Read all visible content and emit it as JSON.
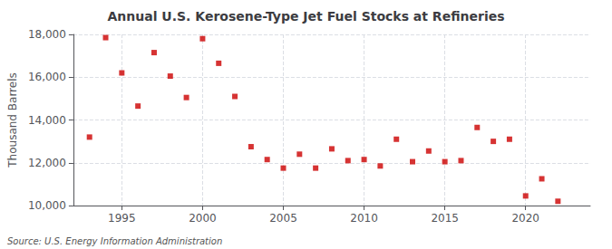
{
  "chart_data": {
    "type": "scatter",
    "title": "Annual U.S. Kerosene-Type Jet Fuel Stocks at Refineries",
    "ylabel": "Thousand Barrels",
    "annotation": "Source: U.S. Energy Information Administration",
    "x": [
      1993,
      1994,
      1995,
      1996,
      1997,
      1998,
      1999,
      2000,
      2001,
      2002,
      2003,
      2004,
      2005,
      2006,
      2007,
      2008,
      2009,
      2010,
      2011,
      2012,
      2013,
      2014,
      2015,
      2016,
      2017,
      2018,
      2019,
      2020,
      2021,
      2022
    ],
    "values": [
      13200,
      17850,
      16200,
      14650,
      17150,
      16050,
      15050,
      17800,
      16650,
      15100,
      12750,
      12150,
      11750,
      12400,
      11750,
      12650,
      12100,
      12150,
      11850,
      13100,
      12050,
      12550,
      12050,
      12100,
      13650,
      13000,
      13100,
      10450,
      11250,
      10200
    ],
    "color": "#cc0000",
    "marker": "square",
    "xlim": [
      1992,
      2024
    ],
    "xticks": [
      1995,
      2000,
      2005,
      2010,
      2015,
      2020
    ],
    "ylim": [
      10000,
      18000
    ],
    "yticks": [
      {
        "value": 10000,
        "label": "10,000"
      },
      {
        "value": 12000,
        "label": "12,000"
      },
      {
        "value": 14000,
        "label": "14,000"
      },
      {
        "value": 16000,
        "label": "16,000"
      },
      {
        "value": 18000,
        "label": "18,000"
      }
    ],
    "grid": true
  }
}
